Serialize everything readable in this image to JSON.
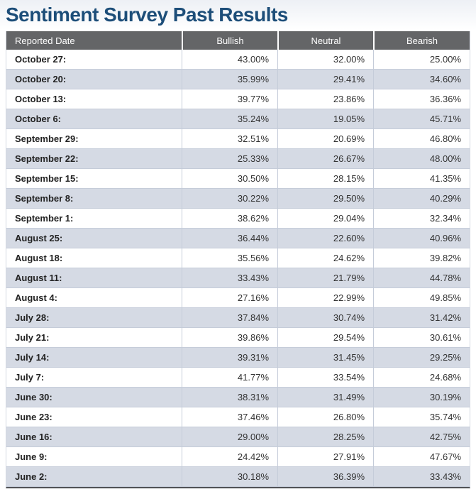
{
  "page": {
    "title": "Sentiment Survey Past Results"
  },
  "colors": {
    "title_text": "#1d4e79",
    "header_bg": "#646567",
    "header_text": "#ffffff",
    "row_alt_bg": "#d5dae4",
    "row_border": "#c5ccd9",
    "table_bottom_border": "#505156"
  },
  "table": {
    "columns": [
      "Reported Date",
      "Bullish",
      "Neutral",
      "Bearish"
    ],
    "rows": [
      {
        "date": "October 27:",
        "bullish": "43.00%",
        "neutral": "32.00%",
        "bearish": "25.00%"
      },
      {
        "date": "October 20:",
        "bullish": "35.99%",
        "neutral": "29.41%",
        "bearish": "34.60%"
      },
      {
        "date": "October 13:",
        "bullish": "39.77%",
        "neutral": "23.86%",
        "bearish": "36.36%"
      },
      {
        "date": "October 6:",
        "bullish": "35.24%",
        "neutral": "19.05%",
        "bearish": "45.71%"
      },
      {
        "date": "September 29:",
        "bullish": "32.51%",
        "neutral": "20.69%",
        "bearish": "46.80%"
      },
      {
        "date": "September 22:",
        "bullish": "25.33%",
        "neutral": "26.67%",
        "bearish": "48.00%"
      },
      {
        "date": "September 15:",
        "bullish": "30.50%",
        "neutral": "28.15%",
        "bearish": "41.35%"
      },
      {
        "date": "September 8:",
        "bullish": "30.22%",
        "neutral": "29.50%",
        "bearish": "40.29%"
      },
      {
        "date": "September 1:",
        "bullish": "38.62%",
        "neutral": "29.04%",
        "bearish": "32.34%"
      },
      {
        "date": "August 25:",
        "bullish": "36.44%",
        "neutral": "22.60%",
        "bearish": "40.96%"
      },
      {
        "date": "August 18:",
        "bullish": "35.56%",
        "neutral": "24.62%",
        "bearish": "39.82%"
      },
      {
        "date": "August 11:",
        "bullish": "33.43%",
        "neutral": "21.79%",
        "bearish": "44.78%"
      },
      {
        "date": "August 4:",
        "bullish": "27.16%",
        "neutral": "22.99%",
        "bearish": "49.85%"
      },
      {
        "date": "July 28:",
        "bullish": "37.84%",
        "neutral": "30.74%",
        "bearish": "31.42%"
      },
      {
        "date": "July 21:",
        "bullish": "39.86%",
        "neutral": "29.54%",
        "bearish": "30.61%"
      },
      {
        "date": "July 14:",
        "bullish": "39.31%",
        "neutral": "31.45%",
        "bearish": "29.25%"
      },
      {
        "date": "July 7:",
        "bullish": "41.77%",
        "neutral": "33.54%",
        "bearish": "24.68%"
      },
      {
        "date": "June 30:",
        "bullish": "38.31%",
        "neutral": "31.49%",
        "bearish": "30.19%"
      },
      {
        "date": "June 23:",
        "bullish": "37.46%",
        "neutral": "26.80%",
        "bearish": "35.74%"
      },
      {
        "date": "June 16:",
        "bullish": "29.00%",
        "neutral": "28.25%",
        "bearish": "42.75%"
      },
      {
        "date": "June 9:",
        "bullish": "24.42%",
        "neutral": "27.91%",
        "bearish": "47.67%"
      },
      {
        "date": "June 2:",
        "bullish": "30.18%",
        "neutral": "36.39%",
        "bearish": "33.43%"
      }
    ]
  }
}
